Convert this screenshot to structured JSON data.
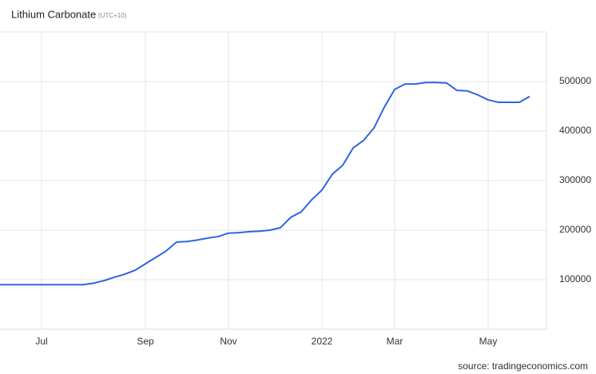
{
  "chart_data": {
    "type": "line",
    "title": "Lithium Carbonate",
    "subtitle": "(UTC+10)",
    "source": "source: tradingeconomics.com",
    "categories": [
      null,
      null,
      null,
      null,
      "Jul",
      null,
      null,
      null,
      null,
      null,
      null,
      null,
      null,
      null,
      "Sep",
      null,
      null,
      null,
      null,
      null,
      null,
      null,
      "Nov",
      null,
      null,
      null,
      null,
      null,
      null,
      null,
      null,
      "2022",
      null,
      null,
      null,
      null,
      null,
      null,
      "Mar",
      null,
      null,
      null,
      null,
      null,
      null,
      null,
      null,
      "May",
      null,
      null,
      null,
      null
    ],
    "series": [
      {
        "name": "Lithium Carbonate",
        "color": "#2f65e0",
        "values": [
          90000,
          90000,
          90000,
          90000,
          90000,
          90000,
          90000,
          90000,
          90000,
          93000,
          98000,
          105000,
          111000,
          119000,
          132000,
          145000,
          158000,
          176000,
          177000,
          180000,
          184000,
          187000,
          194000,
          195000,
          197000,
          198000,
          200000,
          205000,
          226000,
          237000,
          261000,
          281000,
          313000,
          331000,
          366000,
          381000,
          406000,
          448000,
          484000,
          495000,
          495000,
          498000,
          498000,
          497000,
          482000,
          481000,
          473000,
          463000,
          458000,
          458000,
          458000,
          470000
        ]
      }
    ],
    "ylim": [
      0,
      600000
    ],
    "yticks": [
      100000,
      200000,
      300000,
      400000,
      500000
    ],
    "grid": true
  }
}
